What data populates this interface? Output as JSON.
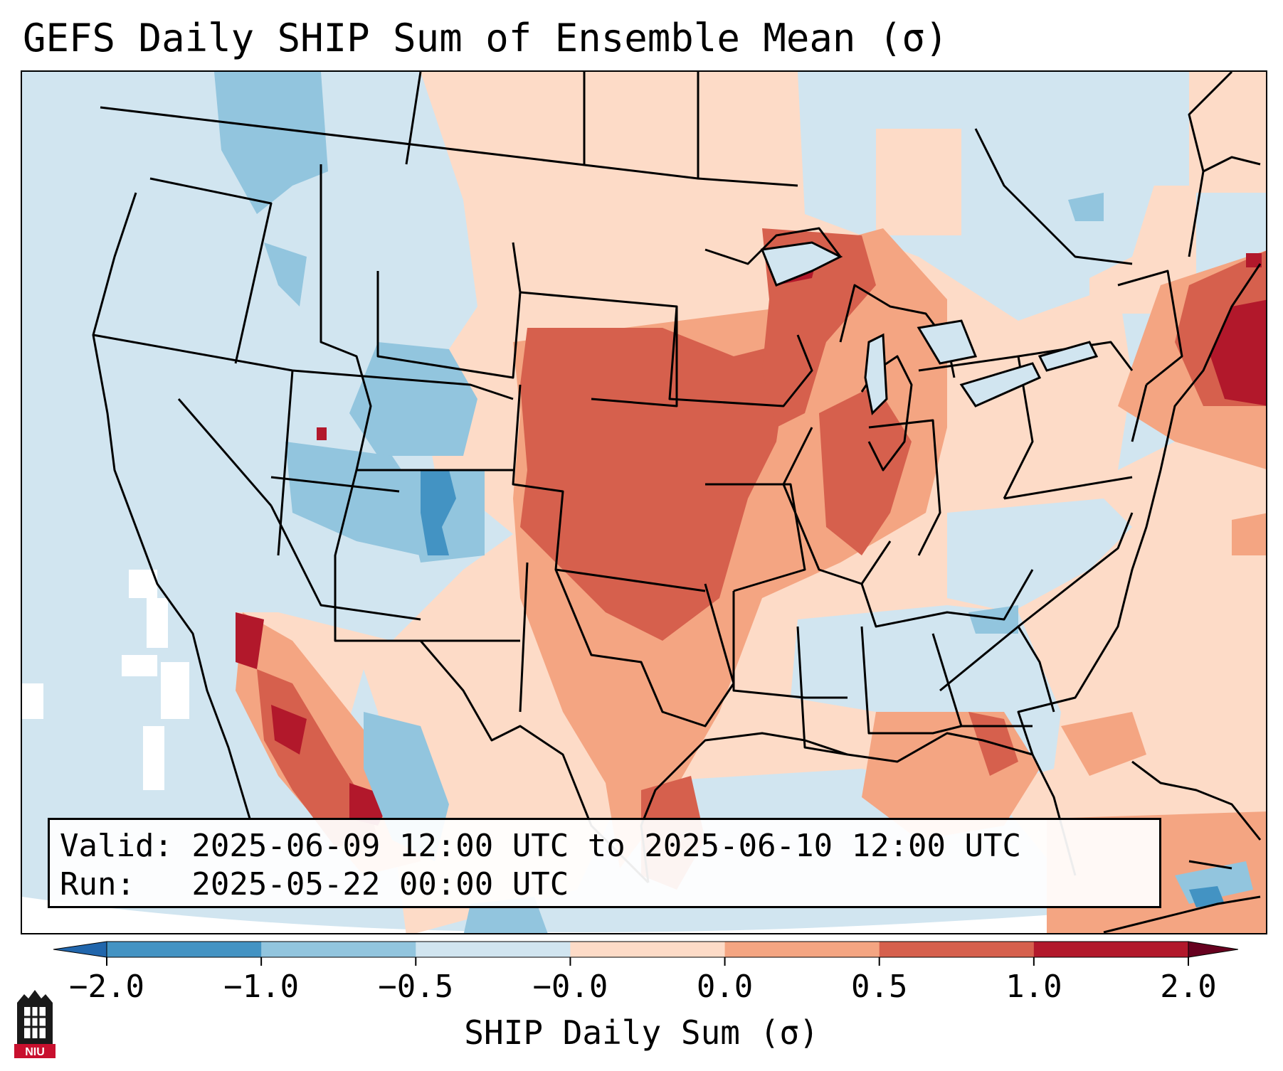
{
  "title": "GEFS Daily SHIP Sum of Ensemble Mean (σ)",
  "info": {
    "valid_line": "Valid: 2025-06-09 12:00 UTC to 2025-06-10 12:00 UTC",
    "run_line": "Run:   2025-05-22 00:00 UTC"
  },
  "colorbar": {
    "label": "SHIP Daily Sum (σ)",
    "ticks": [
      "−2.0",
      "−1.0",
      "−0.5",
      "−0.0",
      "0.0",
      "0.5",
      "1.0",
      "2.0"
    ],
    "colors": [
      "#4393c3",
      "#92c5de",
      "#d1e5f0",
      "#fddbc7",
      "#f4a582",
      "#d6604d",
      "#b2182b"
    ]
  },
  "map": {
    "region": "CONUS",
    "ocean_color": "#d1e5f0",
    "land_color": "#ffffff",
    "border_color": "#000000"
  },
  "logo": {
    "text": "NIU"
  }
}
